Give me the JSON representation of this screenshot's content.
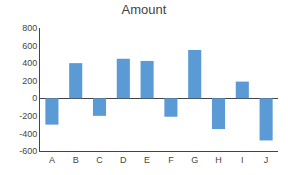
{
  "chart_data": {
    "type": "bar",
    "title": "Amount",
    "categories": [
      "A",
      "B",
      "C",
      "D",
      "E",
      "F",
      "G",
      "H",
      "I",
      "J"
    ],
    "values": [
      -300,
      400,
      -200,
      450,
      425,
      -210,
      550,
      -350,
      190,
      -480
    ],
    "color": "#5B9BD5",
    "ylim": [
      -600,
      800
    ],
    "yticks": [
      -600,
      -400,
      -200,
      0,
      200,
      400,
      600,
      800
    ],
    "grid": false
  }
}
